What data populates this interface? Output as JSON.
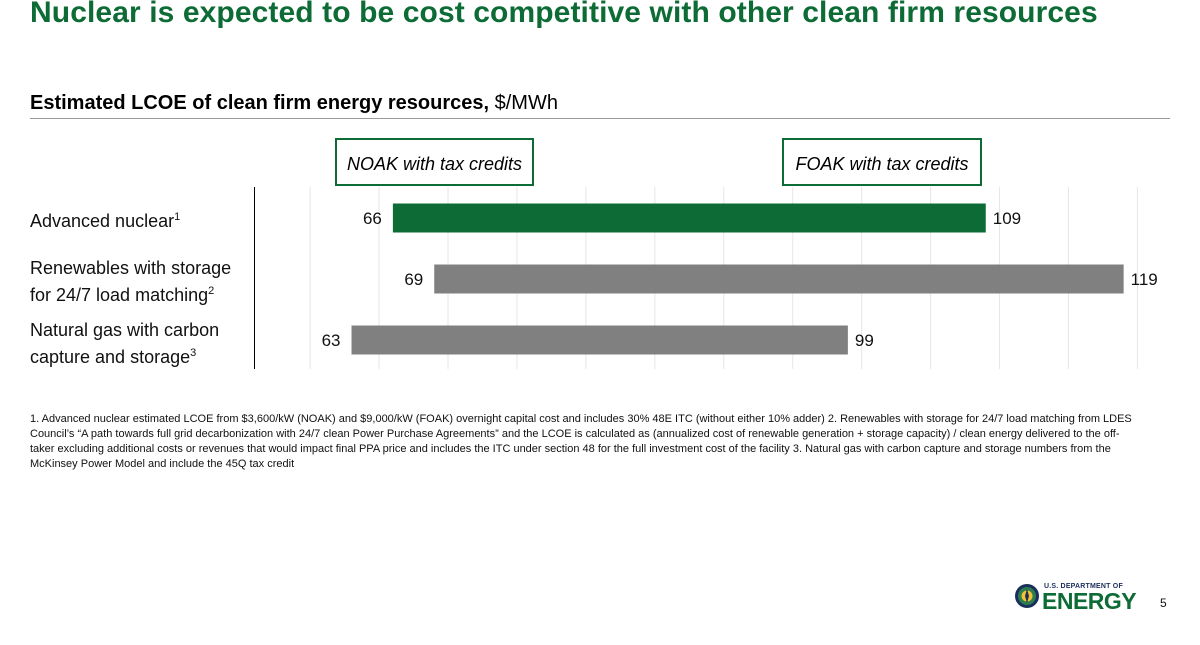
{
  "slide": {
    "title": "Nuclear is expected to be cost competitive with other clean firm resources",
    "page_number": "5"
  },
  "chart_data": {
    "type": "bar",
    "orientation": "horizontal-range",
    "title_bold": "Estimated LCOE of clean firm energy resources,",
    "title_unit": " $/MWh",
    "legend": [
      {
        "label": "NOAK with tax credits",
        "refers_to": "low"
      },
      {
        "label": "FOAK with tax credits",
        "refers_to": "high"
      }
    ],
    "categories": [
      {
        "lines": [
          "Advanced nuclear"
        ],
        "sup": "1"
      },
      {
        "lines": [
          "Renewables with storage",
          "for 24/7 load matching"
        ],
        "sup": "2"
      },
      {
        "lines": [
          "Natural gas with carbon",
          "capture and storage"
        ],
        "sup": "3"
      }
    ],
    "series": [
      {
        "low": 66,
        "high": 109,
        "color": "#0d6b35"
      },
      {
        "low": 69,
        "high": 119,
        "color": "#808080"
      },
      {
        "low": 63,
        "high": 99,
        "color": "#808080"
      }
    ],
    "xlim": [
      56,
      122
    ],
    "grid": true
  },
  "footnote": "1. Advanced nuclear estimated LCOE from $3,600/kW (NOAK) and $9,000/kW (FOAK) overnight capital cost and includes 30% 48E ITC (without either 10% adder) 2. Renewables with storage for 24/7 load matching from LDES Council’s “A path towards full grid decarbonization with 24/7 clean Power Purchase Agreements” and the LCOE is calculated as (annualized cost of renewable generation + storage capacity) / clean energy delivered to the off-taker excluding additional costs or revenues that would impact final PPA price and includes the ITC under section 48 for the full investment cost of the facility 3. Natural gas with carbon capture and storage numbers from the McKinsey Power Model and include the 45Q tax credit",
  "logo": {
    "small_text": "U.S. DEPARTMENT OF",
    "big_text": "ENERGY",
    "icon": "doe-seal-icon"
  }
}
